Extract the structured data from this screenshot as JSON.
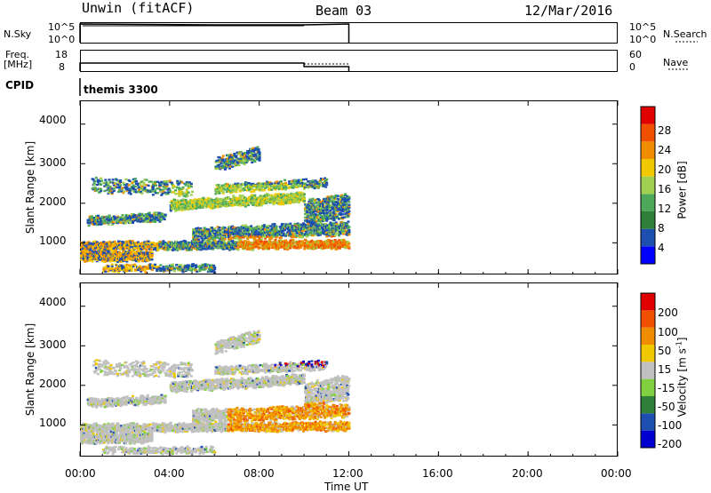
{
  "header": {
    "station": "Unwin (fitACF)",
    "beam": "Beam 03",
    "date": "12/Mar/2016"
  },
  "top_panels": {
    "nsky": {
      "label": "N.Sky",
      "ticks": [
        "10^5",
        "10^0"
      ],
      "right_ticks": [
        "10^5",
        "10^0"
      ],
      "right_label": "N.Search"
    },
    "freq": {
      "label_line1": "Freq.",
      "label_line2": "[MHz]",
      "ticks": [
        "18",
        "8"
      ],
      "right_ticks": [
        "60",
        "0"
      ],
      "right_label": "Nave"
    },
    "cpid": {
      "label": "CPID",
      "value": "themis 3300"
    }
  },
  "chart_data": [
    {
      "type": "heatmap",
      "name": "power-panel",
      "xlabel": "",
      "ylabel": "Slant Range [km]",
      "xlim_hours": [
        0,
        24
      ],
      "ylim": [
        200,
        4600
      ],
      "yticks": [
        "4000",
        "3000",
        "2000",
        "1000"
      ],
      "colorbar": {
        "label": "Power [dB]",
        "ticks": [
          "28",
          "24",
          "20",
          "16",
          "12",
          "8",
          "4"
        ],
        "colors": [
          "#0000ff",
          "#1c4fb0",
          "#2f7f3a",
          "#4ea85a",
          "#a0d050",
          "#f0c800",
          "#f08c00",
          "#f05000",
          "#e00000"
        ]
      },
      "data_time_range_hours": [
        0,
        12
      ]
    },
    {
      "type": "heatmap",
      "name": "velocity-panel",
      "xlabel": "Time UT",
      "ylabel": "Slant Range [km]",
      "xlim_hours": [
        0,
        24
      ],
      "ylim": [
        200,
        4600
      ],
      "yticks": [
        "4000",
        "3000",
        "2000",
        "1000"
      ],
      "xticks": [
        "00:00",
        "04:00",
        "08:00",
        "12:00",
        "16:00",
        "20:00",
        "00:00"
      ],
      "colorbar": {
        "label": "Velocity [m s",
        "label_sup": "-1",
        "label_end": "]",
        "ticks": [
          "200",
          "100",
          "50",
          "15",
          "-15",
          "-50",
          "-100",
          "-200"
        ],
        "colors": [
          "#e00000",
          "#f05000",
          "#f08c00",
          "#f0c800",
          "#c0c0c0",
          "#80d040",
          "#2f7f3a",
          "#1c4fb0",
          "#0000d0"
        ]
      },
      "data_time_range_hours": [
        0,
        12
      ]
    }
  ]
}
